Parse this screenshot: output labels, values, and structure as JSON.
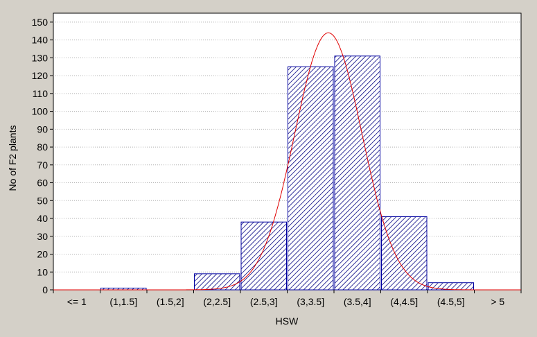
{
  "chart_data": {
    "type": "bar",
    "title": "",
    "xlabel": "HSW",
    "ylabel": "No of F2 plants",
    "categories": [
      "<= 1",
      "(1,1.5]",
      "(1.5,2]",
      "(2,2.5]",
      "(2.5,3]",
      "(3,3.5]",
      "(3.5,4]",
      "(4,4.5]",
      "(4.5,5]",
      "> 5"
    ],
    "values": [
      0,
      1,
      0,
      9,
      38,
      125,
      131,
      41,
      4,
      0
    ],
    "ylim": [
      0,
      155
    ],
    "yticks": [
      0,
      10,
      20,
      30,
      40,
      50,
      60,
      70,
      80,
      90,
      100,
      110,
      120,
      130,
      140,
      150
    ],
    "grid": true,
    "fit_curve": {
      "type": "normal",
      "peak": 144,
      "peak_category_position": 5.88,
      "sigma_categories": 0.72
    },
    "colors": {
      "bar_edge": "#0000a0",
      "bar_hatch": "#000080",
      "curve": "#e00000",
      "plot_bg": "#ffffff",
      "frame_bg": "#d4d0c8",
      "grid": "#b0b0b0"
    }
  }
}
